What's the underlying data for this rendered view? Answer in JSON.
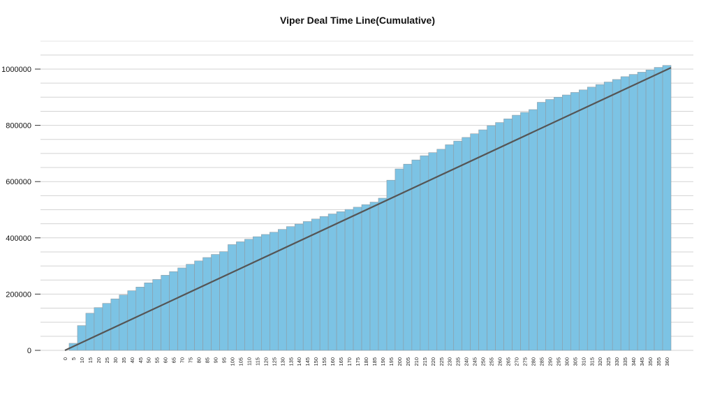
{
  "chart_data": {
    "type": "bar",
    "title": "Viper Deal Time Line(Cumulative)",
    "xlabel": "",
    "ylabel": "",
    "ylim": [
      0,
      1000000
    ],
    "y_ticks": [
      0,
      200000,
      400000,
      600000,
      800000,
      1000000
    ],
    "y_tick_labels": [
      "0",
      "200000",
      "400000",
      "600000",
      "800000",
      "1000000"
    ],
    "grid": true,
    "legend": "none",
    "colors": {
      "bar": "#7cc3e4",
      "bar_stroke": "#8e9ba3",
      "trend_line": "#555555",
      "grid": "#d3d3d3"
    },
    "categories": [
      "0",
      "5",
      "10",
      "15",
      "20",
      "25",
      "30",
      "35",
      "40",
      "45",
      "50",
      "55",
      "60",
      "65",
      "70",
      "75",
      "80",
      "85",
      "90",
      "95",
      "100",
      "105",
      "110",
      "115",
      "120",
      "125",
      "130",
      "135",
      "140",
      "145",
      "150",
      "155",
      "160",
      "165",
      "170",
      "175",
      "180",
      "185",
      "190",
      "195",
      "200",
      "205",
      "210",
      "215",
      "220",
      "225",
      "230",
      "235",
      "240",
      "245",
      "250",
      "255",
      "260",
      "265",
      "270",
      "275",
      "280",
      "285",
      "290",
      "295",
      "300",
      "305",
      "310",
      "315",
      "320",
      "325",
      "330",
      "335",
      "340",
      "345",
      "350",
      "355",
      "360"
    ],
    "values": [
      0,
      25000,
      88000,
      132000,
      152000,
      167000,
      183000,
      197000,
      212000,
      225000,
      240000,
      252000,
      267000,
      280000,
      293000,
      306000,
      318000,
      330000,
      341000,
      351000,
      376000,
      386000,
      395000,
      404000,
      412000,
      420000,
      430000,
      440000,
      449000,
      458000,
      467000,
      476000,
      485000,
      493000,
      501000,
      509000,
      518000,
      527000,
      541000,
      605000,
      645000,
      662000,
      677000,
      692000,
      703000,
      715000,
      731000,
      744000,
      757000,
      770000,
      784000,
      799000,
      810000,
      823000,
      836000,
      846000,
      856000,
      882000,
      892000,
      900000,
      908000,
      917000,
      926000,
      936000,
      945000,
      954000,
      963000,
      973000,
      981000,
      989000,
      997000,
      1006000,
      1013000
    ],
    "trend_line": {
      "x_start": "0",
      "y_start": 0,
      "x_end": "360",
      "y_end": 1005000
    }
  }
}
